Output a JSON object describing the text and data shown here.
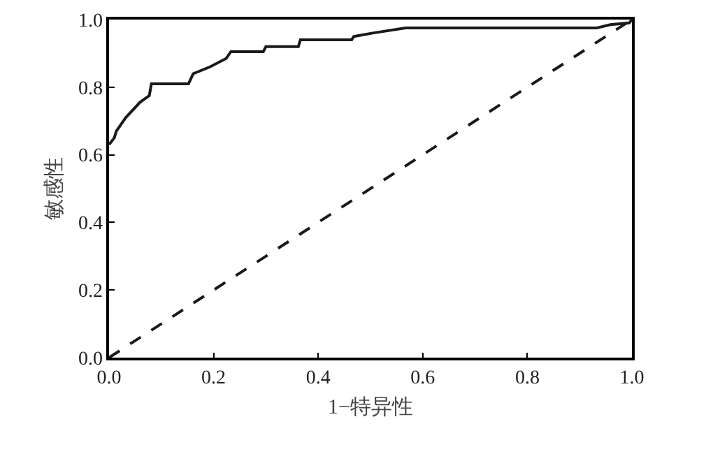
{
  "chart_data": {
    "type": "line",
    "xlabel": "1−特异性",
    "ylabel": "敏感性",
    "xlim": [
      0,
      1
    ],
    "ylim": [
      0,
      1
    ],
    "xticks": [
      {
        "value": 0,
        "label": "0.0"
      },
      0.2,
      0.4,
      0.6,
      0.8,
      {
        "value": 1,
        "label": "1.0"
      }
    ],
    "yticks": [
      {
        "value": 0,
        "label": "0.0"
      },
      0.2,
      0.4,
      0.6,
      0.8,
      {
        "value": 1,
        "label": "1.0"
      }
    ],
    "grid": false,
    "marker": "none",
    "series": [
      {
        "color": "#1a1a1a",
        "line_style": "solid",
        "x": [
          0,
          0.01,
          0.014,
          0.032,
          0.059,
          0.077,
          0.081,
          0.152,
          0.161,
          0.193,
          0.224,
          0.233,
          0.295,
          0.3,
          0.362,
          0.366,
          0.464,
          0.468,
          0.504,
          0.567,
          0.932,
          0.959,
          0.995,
          1
        ],
        "values": [
          0.63,
          0.65,
          0.67,
          0.71,
          0.755,
          0.775,
          0.81,
          0.81,
          0.84,
          0.86,
          0.885,
          0.905,
          0.905,
          0.92,
          0.92,
          0.94,
          0.94,
          0.95,
          0.96,
          0.975,
          0.975,
          0.985,
          0.99,
          1
        ]
      },
      {
        "color": "#1a1a1a",
        "line_style": "dashed",
        "x": [
          0,
          1
        ],
        "values": [
          0,
          1
        ]
      }
    ]
  }
}
